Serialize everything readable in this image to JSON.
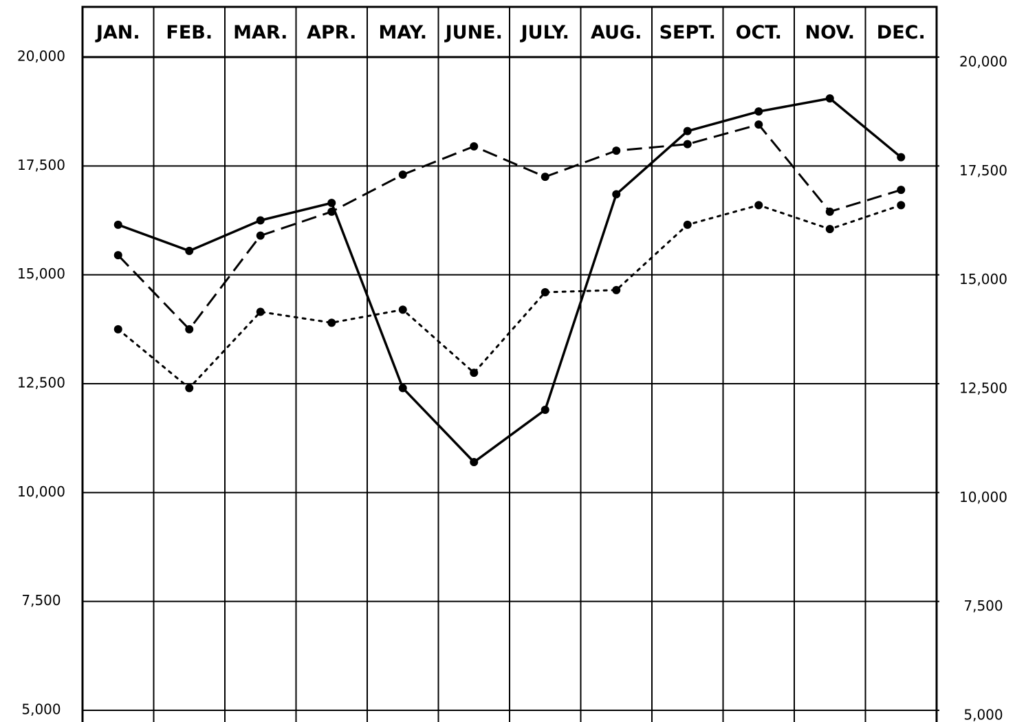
{
  "chart_data": {
    "type": "line",
    "categories": [
      "JAN.",
      "FEB.",
      "MAR.",
      "APR.",
      "MAY.",
      "JUNE.",
      "JULY.",
      "AUG.",
      "SEPT.",
      "OCT.",
      "NOV.",
      "DEC."
    ],
    "series": [
      {
        "color": "#000000",
        "line_style": "solid",
        "values": [
          16150,
          15550,
          16250,
          16650,
          12400,
          10700,
          11900,
          16850,
          18300,
          18750,
          19050,
          17700
        ]
      },
      {
        "color": "#000000",
        "line_style": "dashed",
        "values": [
          15450,
          13750,
          15900,
          16450,
          17300,
          17950,
          17250,
          17850,
          18000,
          18450,
          16450,
          16950
        ]
      },
      {
        "color": "#000000",
        "line_style": "dotted",
        "values": [
          13750,
          12400,
          14150,
          13900,
          14200,
          12750,
          14600,
          14650,
          16150,
          16600,
          16050,
          16600
        ]
      }
    ],
    "ylim": [
      5000,
      20000
    ],
    "yticks": [
      {
        "value": 5000,
        "label": "5,000"
      },
      {
        "value": 7500,
        "label": "7,500"
      },
      {
        "value": 10000,
        "label": "10,000"
      },
      {
        "value": 12500,
        "label": "12,500"
      },
      {
        "value": 15000,
        "label": "15,000"
      },
      {
        "value": 17500,
        "label": "17,500"
      },
      {
        "value": 20000,
        "label": "20,000"
      }
    ],
    "y2lim": [
      5000,
      20000
    ],
    "y2ticks": [
      {
        "value": 5000,
        "label": "5,000"
      },
      {
        "value": 7500,
        "label": "7,500"
      },
      {
        "value": 10000,
        "label": "10,000"
      },
      {
        "value": 12500,
        "label": "12,500"
      },
      {
        "value": 15000,
        "label": "15,000"
      },
      {
        "value": 17500,
        "label": "17,500"
      },
      {
        "value": 20000,
        "label": "20,000"
      }
    ],
    "grid": true
  }
}
